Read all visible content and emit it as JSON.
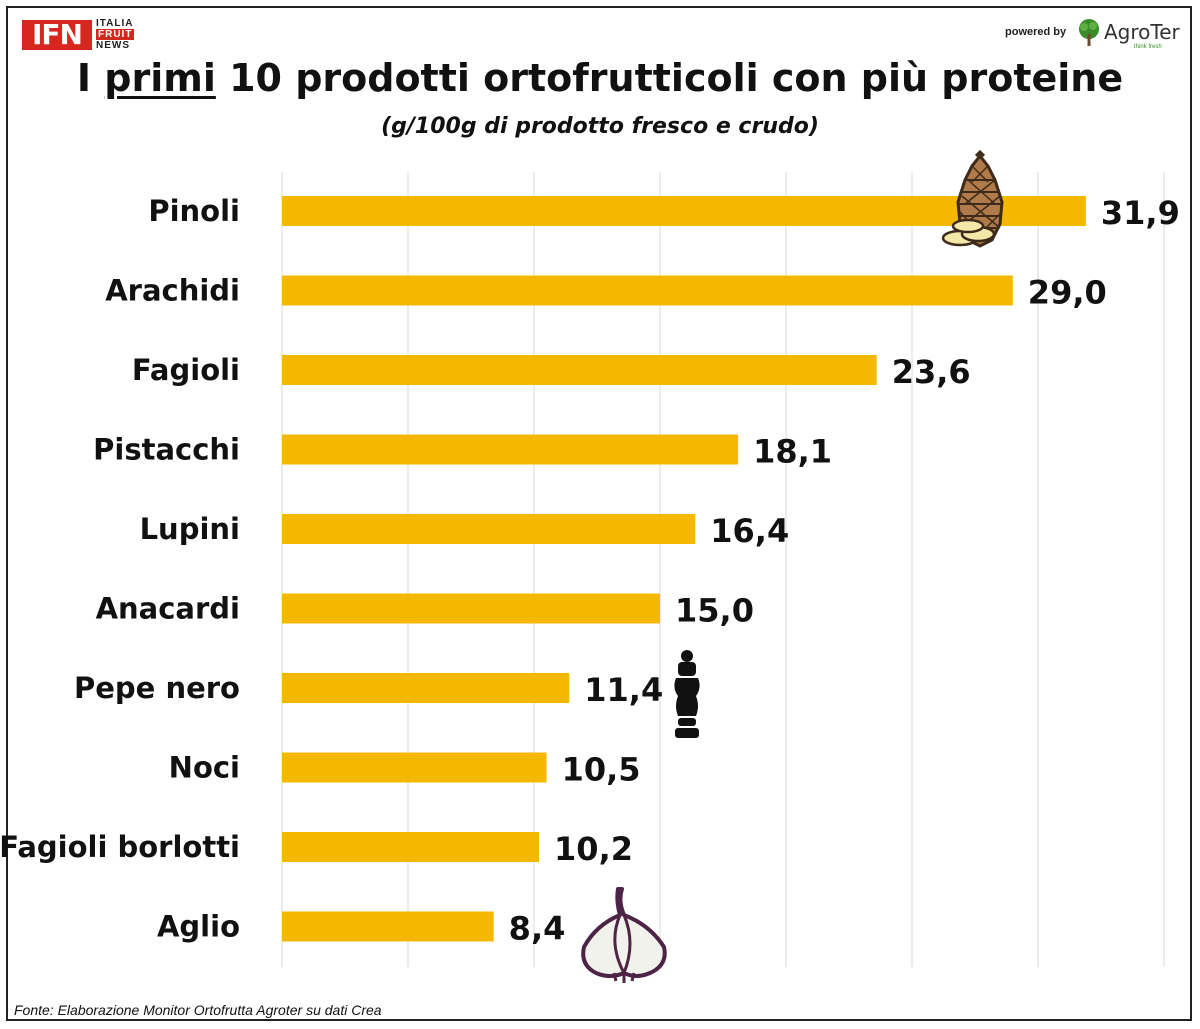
{
  "header": {
    "logo_text": "IFN",
    "logo_lines": [
      "ITALIA",
      "FRUIT",
      "NEWS"
    ],
    "powered_by": "powered by",
    "sponsor": "AgroTer",
    "sponsor_tagline": "think fresh"
  },
  "title_before": "I ",
  "title_emph": "primi",
  "title_after": " 10 prodotti ortofrutticoli con più proteine",
  "subtitle": "(g/100g di prodotto fresco e crudo)",
  "source": "Fonte: Elaborazione Monitor Ortofrutta Agroter su dati Crea",
  "colors": {
    "bar": "#f5b800",
    "grid": "#d9d9d9",
    "text": "#111111"
  },
  "icons": [
    "pinecone-icon",
    "pepper-mill-icon",
    "garlic-icon"
  ],
  "chart_data": {
    "type": "bar",
    "orientation": "horizontal",
    "categories": [
      "Pinoli",
      "Arachidi",
      "Fagioli",
      "Pistacchi",
      "Lupini",
      "Anacardi",
      "Pepe nero",
      "Noci",
      "Fagioli borlotti",
      "Aglio"
    ],
    "values": [
      31.9,
      29.0,
      23.6,
      18.1,
      16.4,
      15.0,
      11.4,
      10.5,
      10.2,
      8.4
    ],
    "value_labels": [
      "31,9",
      "29,0",
      "23,6",
      "18,1",
      "16,4",
      "15,0",
      "11,4",
      "10,5",
      "10,2",
      "8,4"
    ],
    "xlim": [
      0,
      35
    ],
    "grid": true,
    "legend": "none"
  }
}
